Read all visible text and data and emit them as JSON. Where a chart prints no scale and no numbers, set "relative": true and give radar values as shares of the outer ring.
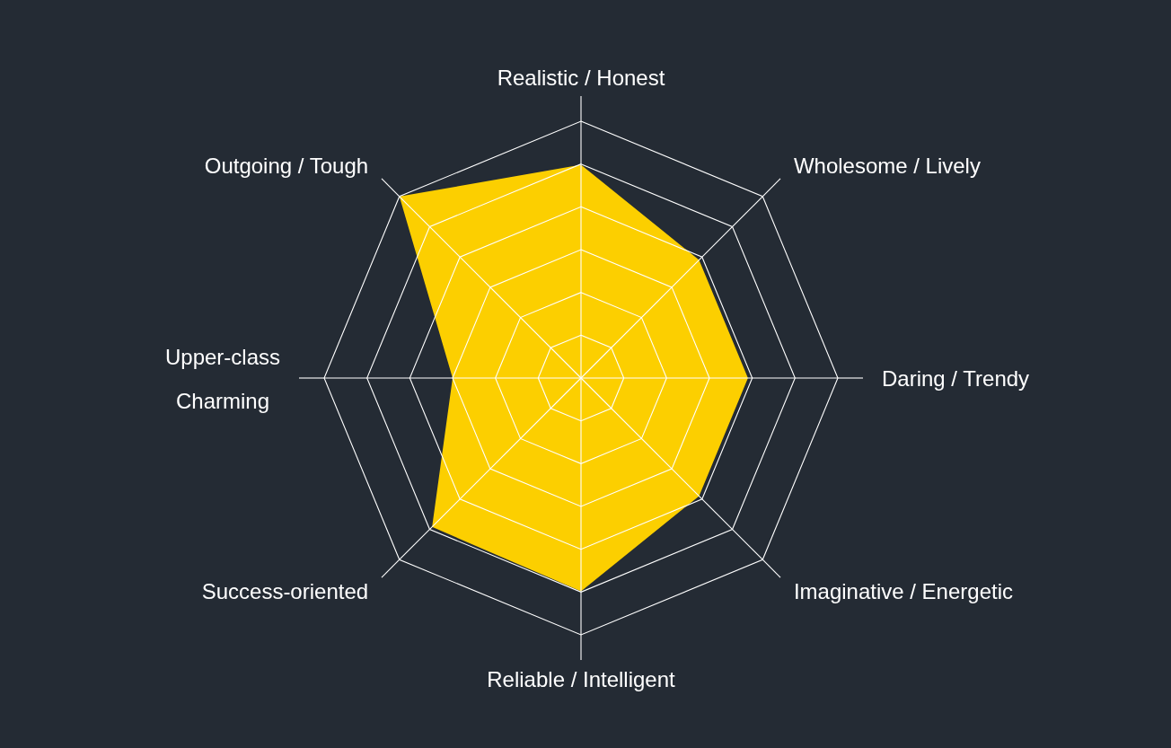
{
  "chart_data": {
    "type": "radar",
    "relative": true,
    "grid": true,
    "categories": [
      "Realistic / Honest",
      "Wholesome / Lively",
      "Daring / Trendy",
      "Imaginative / Energetic",
      "Reliable / Intelligent",
      "Success-oriented",
      "Upper-class\nCharming",
      "Outgoing / Tough"
    ],
    "series": [
      {
        "color": "#fccf00",
        "values": [
          0.83,
          0.65,
          0.65,
          0.65,
          0.83,
          0.82,
          0.5,
          1
        ]
      }
    ]
  }
}
